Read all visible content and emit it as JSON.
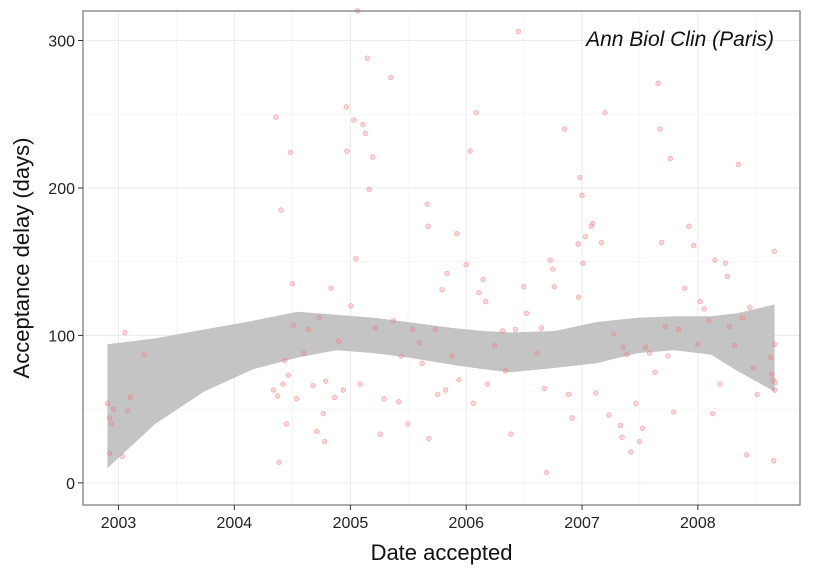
{
  "chart_data": {
    "type": "scatter",
    "annotation": "Ann Biol Clin (Paris)",
    "xlabel": "Date accepted",
    "ylabel": "Acceptance delay (days)",
    "x_ticks": [
      "2003",
      "2004",
      "2005",
      "2006",
      "2007",
      "2008"
    ],
    "y_ticks": [
      "0",
      "100",
      "200",
      "300"
    ],
    "xlim": [
      "2002-09-11",
      "2008-11-18"
    ],
    "ylim": [
      -15,
      320
    ],
    "grid": true,
    "legend": "none",
    "colors": {
      "points": "#f08080",
      "ribbon": "#c4c4c4",
      "panel_border": "#7f7f7f",
      "grid": "#ececec"
    },
    "series": [
      {
        "values": [
          [
            "2002-11-27",
            54
          ],
          [
            "2002-12-04",
            44
          ],
          [
            "2002-12-04",
            20
          ],
          [
            "2002-12-10",
            40
          ],
          [
            "2002-12-16",
            50
          ],
          [
            "2003-01-13",
            18
          ],
          [
            "2003-01-21",
            102
          ],
          [
            "2003-02-07",
            58
          ],
          [
            "2003-01-30",
            49
          ],
          [
            "2003-03-23",
            87
          ],
          [
            "2004-05-03",
            63
          ],
          [
            "2004-05-11",
            248
          ],
          [
            "2004-05-16",
            59
          ],
          [
            "2004-05-21",
            14
          ],
          [
            "2004-05-27",
            185
          ],
          [
            "2004-06-02",
            67
          ],
          [
            "2004-06-08",
            83
          ],
          [
            "2004-06-13",
            40
          ],
          [
            "2004-06-19",
            73
          ],
          [
            "2004-06-26",
            224
          ],
          [
            "2004-07-02",
            135
          ],
          [
            "2004-07-05",
            107
          ],
          [
            "2004-07-15",
            57
          ],
          [
            "2004-08-07",
            88
          ],
          [
            "2004-08-21",
            104
          ],
          [
            "2004-09-05",
            66
          ],
          [
            "2004-09-17",
            35
          ],
          [
            "2004-09-25",
            112
          ],
          [
            "2004-10-07",
            47
          ],
          [
            "2004-10-12",
            28
          ],
          [
            "2004-10-15",
            69
          ],
          [
            "2004-11-01",
            132
          ],
          [
            "2004-11-12",
            58
          ],
          [
            "2004-11-25",
            96
          ],
          [
            "2004-12-09",
            63
          ],
          [
            "2004-12-19",
            255
          ],
          [
            "2004-12-21",
            225
          ],
          [
            "2005-01-02",
            120
          ],
          [
            "2005-01-12",
            246
          ],
          [
            "2005-01-18",
            152
          ],
          [
            "2005-01-24",
            320
          ],
          [
            "2005-02-01",
            67
          ],
          [
            "2005-02-09",
            243
          ],
          [
            "2005-02-17",
            237
          ],
          [
            "2005-02-23",
            288
          ],
          [
            "2005-03-01",
            199
          ],
          [
            "2005-03-12",
            221
          ],
          [
            "2005-03-20",
            105
          ],
          [
            "2005-04-05",
            33
          ],
          [
            "2005-04-17",
            57
          ],
          [
            "2005-05-08",
            275
          ],
          [
            "2005-05-16",
            110
          ],
          [
            "2005-06-02",
            55
          ],
          [
            "2005-06-10",
            86
          ],
          [
            "2005-07-01",
            40
          ],
          [
            "2005-07-16",
            104
          ],
          [
            "2005-08-07",
            95
          ],
          [
            "2005-08-15",
            81
          ],
          [
            "2005-08-31",
            189
          ],
          [
            "2005-09-03",
            174
          ],
          [
            "2005-09-05",
            30
          ],
          [
            "2005-09-25",
            104
          ],
          [
            "2005-10-03",
            60
          ],
          [
            "2005-10-17",
            131
          ],
          [
            "2005-10-28",
            63
          ],
          [
            "2005-11-01",
            142
          ],
          [
            "2005-11-17",
            86
          ],
          [
            "2005-12-02",
            169
          ],
          [
            "2005-12-09",
            70
          ],
          [
            "2006-01-01",
            148
          ],
          [
            "2006-01-13",
            225
          ],
          [
            "2006-01-23",
            54
          ],
          [
            "2006-02-01",
            251
          ],
          [
            "2006-02-10",
            129
          ],
          [
            "2006-02-23",
            138
          ],
          [
            "2006-03-03",
            123
          ],
          [
            "2006-03-09",
            67
          ],
          [
            "2006-04-01",
            93
          ],
          [
            "2006-04-26",
            103
          ],
          [
            "2006-05-05",
            76
          ],
          [
            "2006-05-22",
            33
          ],
          [
            "2006-06-05",
            104
          ],
          [
            "2006-06-14",
            306
          ],
          [
            "2006-07-01",
            133
          ],
          [
            "2006-07-10",
            115
          ],
          [
            "2006-08-12",
            88
          ],
          [
            "2006-08-26",
            105
          ],
          [
            "2006-09-04",
            64
          ],
          [
            "2006-09-11",
            7
          ],
          [
            "2006-09-23",
            151
          ],
          [
            "2006-10-01",
            145
          ],
          [
            "2006-10-06",
            133
          ],
          [
            "2006-11-07",
            240
          ],
          [
            "2006-11-19",
            60
          ],
          [
            "2006-12-01",
            44
          ],
          [
            "2006-12-20",
            162
          ],
          [
            "2006-12-21",
            126
          ],
          [
            "2006-12-25",
            207
          ],
          [
            "2007-01-01",
            195
          ],
          [
            "2007-01-04",
            149
          ],
          [
            "2007-01-12",
            167
          ],
          [
            "2007-01-30",
            174
          ],
          [
            "2007-02-04",
            176
          ],
          [
            "2007-02-13",
            61
          ],
          [
            "2007-03-03",
            163
          ],
          [
            "2007-03-14",
            251
          ],
          [
            "2007-03-27",
            46
          ],
          [
            "2007-04-11",
            101
          ],
          [
            "2007-05-02",
            39
          ],
          [
            "2007-05-07",
            31
          ],
          [
            "2007-05-11",
            92
          ],
          [
            "2007-05-22",
            87
          ],
          [
            "2007-06-04",
            21
          ],
          [
            "2007-06-20",
            54
          ],
          [
            "2007-07-01",
            28
          ],
          [
            "2007-07-11",
            37
          ],
          [
            "2007-07-20",
            92
          ],
          [
            "2007-08-02",
            88
          ],
          [
            "2007-08-19",
            75
          ],
          [
            "2007-08-29",
            271
          ],
          [
            "2007-09-04",
            240
          ],
          [
            "2007-09-09",
            163
          ],
          [
            "2007-09-20",
            106
          ],
          [
            "2007-09-29",
            86
          ],
          [
            "2007-10-06",
            220
          ],
          [
            "2007-10-17",
            48
          ],
          [
            "2007-11-02",
            104
          ],
          [
            "2007-11-20",
            132
          ],
          [
            "2007-12-04",
            174
          ],
          [
            "2007-12-19",
            161
          ],
          [
            "2008-01-01",
            94
          ],
          [
            "2008-01-08",
            123
          ],
          [
            "2008-01-21",
            118
          ],
          [
            "2008-02-05",
            110
          ],
          [
            "2008-02-16",
            47
          ],
          [
            "2008-02-24",
            151
          ],
          [
            "2008-03-11",
            67
          ],
          [
            "2008-03-28",
            149
          ],
          [
            "2008-04-03",
            140
          ],
          [
            "2008-04-09",
            106
          ],
          [
            "2008-04-25",
            93
          ],
          [
            "2008-05-08",
            216
          ],
          [
            "2008-05-20",
            112
          ],
          [
            "2008-06-03",
            19
          ],
          [
            "2008-06-13",
            119
          ],
          [
            "2008-06-24",
            78
          ],
          [
            "2008-07-06",
            60
          ],
          [
            "2008-08-18",
            85
          ],
          [
            "2008-08-21",
            74
          ],
          [
            "2008-08-25",
            70
          ],
          [
            "2008-08-29",
            157
          ],
          [
            "2008-08-27",
            15
          ],
          [
            "2008-08-30",
            94
          ],
          [
            "2008-08-30",
            63
          ],
          [
            "2008-09-01",
            68
          ]
        ]
      }
    ],
    "smooth": {
      "x": [
        "2002-11-27",
        "2003-04-27",
        "2003-09-28",
        "2004-02-29",
        "2004-07-19",
        "2004-11-17",
        "2005-03-15",
        "2005-07-02",
        "2005-11-19",
        "2006-02-25",
        "2006-05-22",
        "2006-10-08",
        "2007-02-13",
        "2007-06-25",
        "2007-10-18",
        "2008-02-12",
        "2008-05-03",
        "2008-08-30"
      ],
      "fit": [
        52,
        68,
        82,
        93,
        102,
        103,
        100,
        97,
        95,
        91,
        90,
        94,
        97,
        101,
        103,
        100,
        95,
        92
      ],
      "lower": [
        10,
        40,
        62,
        77,
        85,
        90,
        88,
        85,
        80,
        77,
        75,
        78,
        81,
        88,
        90,
        87,
        76,
        62
      ],
      "upper": [
        94,
        98,
        104,
        110,
        116,
        114,
        112,
        109,
        105,
        103,
        102,
        103,
        109,
        112,
        113,
        113,
        115,
        121
      ]
    }
  }
}
